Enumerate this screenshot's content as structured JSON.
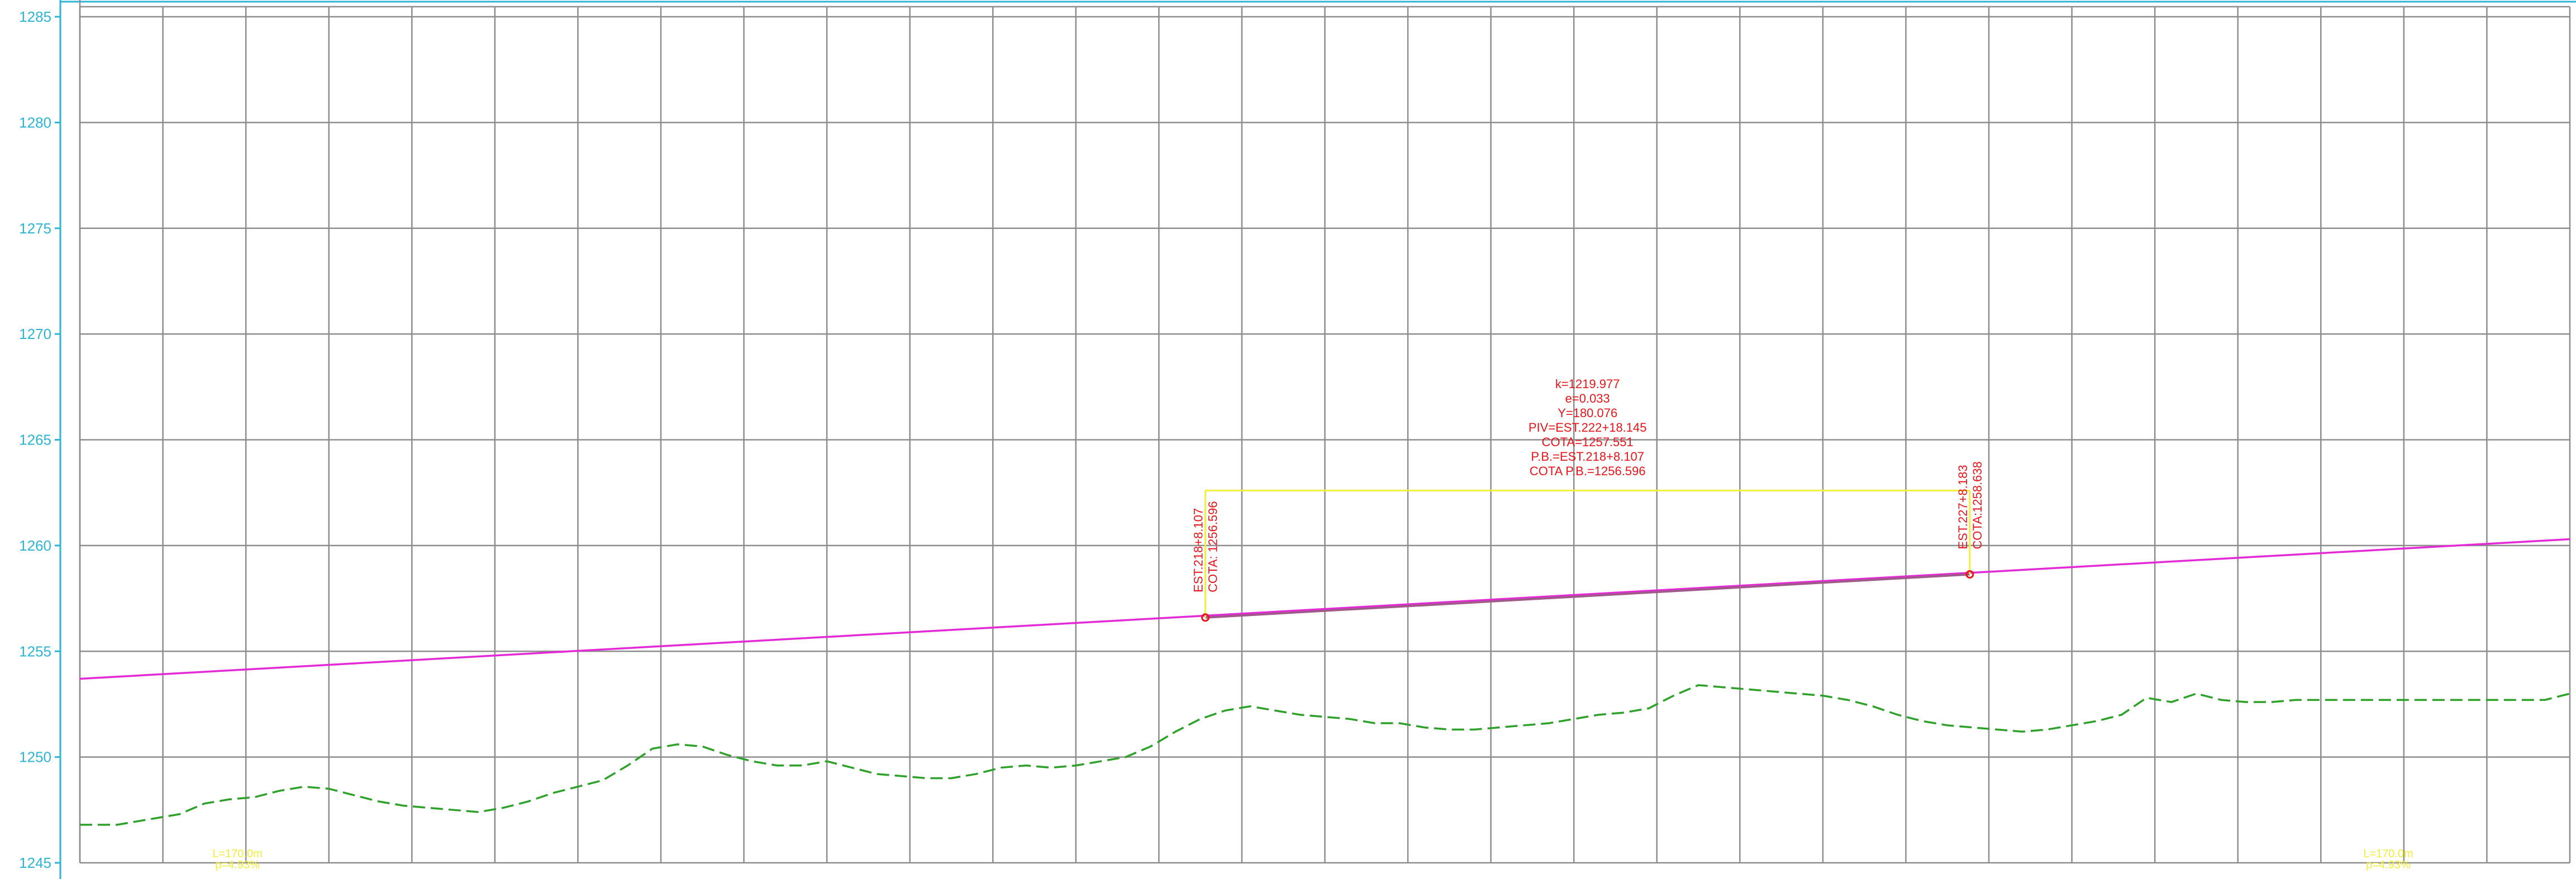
{
  "chart_data": {
    "type": "line",
    "xlabel": "",
    "ylabel": "",
    "ylim": [
      1245,
      1285
    ],
    "yticks": [
      "1285",
      "1280",
      "1275",
      "1270",
      "1265",
      "1260",
      "1255",
      "1250",
      "1245"
    ],
    "xlim": [
      0,
      100
    ],
    "grid": true,
    "series": [
      {
        "key": "terrain",
        "style": "dashed",
        "color": "#2ea12a",
        "x": [
          0,
          1.5,
          3,
          4,
          5,
          6,
          7,
          8,
          9,
          10,
          11,
          12,
          13,
          14,
          15,
          16,
          17,
          18,
          19,
          20,
          21,
          22,
          23,
          24,
          25,
          26,
          27,
          28,
          29,
          30,
          31,
          32,
          33,
          34,
          35,
          36,
          37,
          38,
          39,
          40,
          41,
          42,
          43,
          44,
          45,
          46,
          47,
          48,
          49,
          50,
          51,
          52,
          53,
          54,
          55,
          56,
          57,
          58,
          59,
          60,
          61,
          62,
          63,
          64,
          65,
          66,
          67,
          68,
          69,
          70,
          71,
          72,
          73,
          74,
          75,
          76,
          77,
          78,
          79,
          80,
          81,
          82,
          83,
          84,
          85,
          86,
          87,
          88,
          89,
          90,
          91,
          92,
          93,
          94,
          95,
          96,
          97,
          98,
          99,
          100
        ],
        "values": [
          1246.8,
          1246.8,
          1247.1,
          1247.3,
          1247.8,
          1248.0,
          1248.1,
          1248.4,
          1248.6,
          1248.5,
          1248.2,
          1247.9,
          1247.7,
          1247.6,
          1247.5,
          1247.4,
          1247.6,
          1247.9,
          1248.3,
          1248.6,
          1248.9,
          1249.6,
          1250.4,
          1250.6,
          1250.5,
          1250.1,
          1249.8,
          1249.6,
          1249.6,
          1249.8,
          1249.5,
          1249.2,
          1249.1,
          1249.0,
          1249.0,
          1249.2,
          1249.5,
          1249.6,
          1249.5,
          1249.6,
          1249.8,
          1250.0,
          1250.5,
          1251.2,
          1251.8,
          1252.2,
          1252.4,
          1252.2,
          1252.0,
          1251.9,
          1251.8,
          1251.6,
          1251.6,
          1251.4,
          1251.3,
          1251.3,
          1251.4,
          1251.5,
          1251.6,
          1251.8,
          1252.0,
          1252.1,
          1252.3,
          1252.9,
          1253.4,
          1253.3,
          1253.2,
          1253.1,
          1253.0,
          1252.9,
          1252.7,
          1252.4,
          1252.0,
          1251.7,
          1251.5,
          1251.4,
          1251.3,
          1251.2,
          1251.3,
          1251.5,
          1251.7,
          1252.0,
          1252.8,
          1252.6,
          1253.0,
          1252.7,
          1252.6,
          1252.6,
          1252.7,
          1252.7,
          1252.7,
          1252.7,
          1252.7,
          1252.7,
          1252.7,
          1252.7,
          1252.7,
          1252.7,
          1252.7,
          1253.0
        ]
      },
      {
        "key": "grade",
        "style": "solid",
        "color": "#e42ad6",
        "x": [
          0,
          100
        ],
        "values": [
          1253.7,
          1260.3
        ]
      }
    ],
    "curve": {
      "color": "#a05a8a",
      "pc": {
        "x": 45.2,
        "y": 1256.596
      },
      "pt": {
        "x": 75.9,
        "y": 1258.638
      },
      "guide_y": 1262.6
    },
    "annotations": {
      "pc_label": [
        "EST.218+8.107",
        "COTA: 1256.596"
      ],
      "pt_label": [
        "EST.227+8.183",
        "COTA:1258.638"
      ],
      "curve_block": [
        "k=1219.977",
        "e=0.033",
        "Y=180.076",
        "PIV=EST.222+18.145",
        "COTA=1257.551",
        "P.B.=EST.218+8.107",
        "COTA  P.B.=1256.596"
      ],
      "bottom_left": [
        "L=170.0m",
        "p=4.93%"
      ],
      "bottom_right": [
        "L=170.0m",
        "p=4.93%"
      ]
    }
  }
}
